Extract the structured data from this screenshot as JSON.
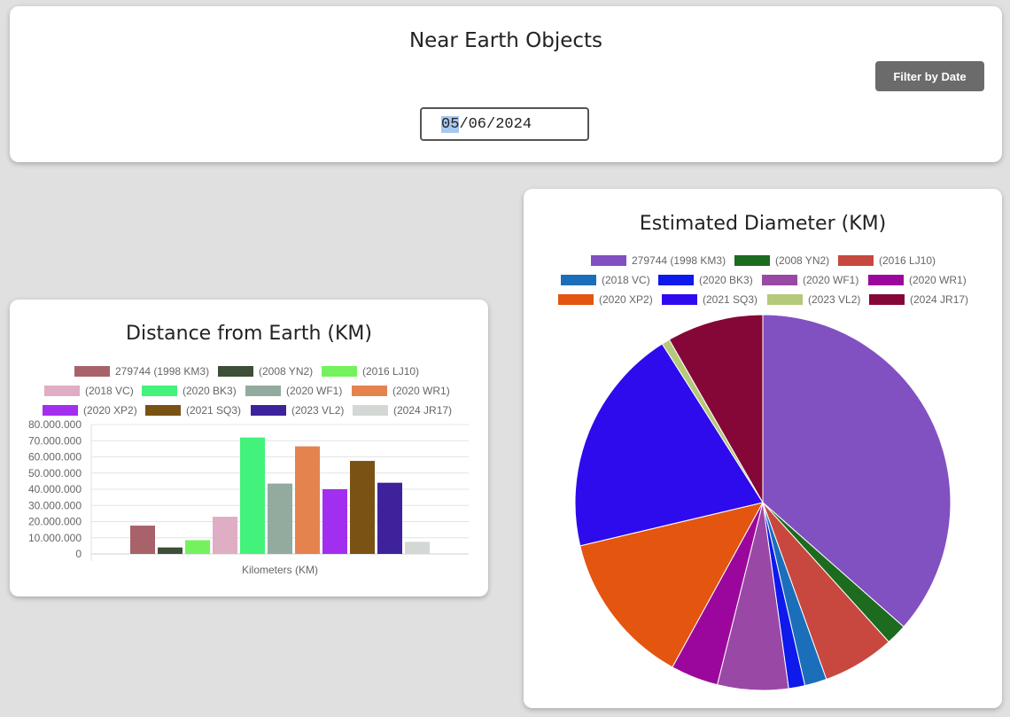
{
  "header": {
    "title": "Near Earth Objects",
    "filter_button": "Filter by Date",
    "date_value": {
      "month": "05",
      "day": "06",
      "year": "2024",
      "sep": "/"
    }
  },
  "chart_data": [
    {
      "type": "bar",
      "title": "Distance from Earth (KM)",
      "xlabel": "Kilometers (KM)",
      "ylabel": "",
      "ylim": [
        0,
        80000000
      ],
      "yticks": [
        "80.000.000",
        "70.000.000",
        "60.000.000",
        "50.000.000",
        "40.000.000",
        "30.000.000",
        "20.000.000",
        "10.000.000",
        "0"
      ],
      "legend_position": "top",
      "grid": true,
      "series": [
        {
          "name": "279744 (1998 KM3)",
          "value": 17500000,
          "color": "#a8636a"
        },
        {
          "name": "(2008 YN2)",
          "value": 4000000,
          "color": "#3d4f37"
        },
        {
          "name": "(2016 LJ10)",
          "value": 8500000,
          "color": "#74f25e"
        },
        {
          "name": "(2018 VC)",
          "value": 23000000,
          "color": "#dfadc4"
        },
        {
          "name": "(2020 BK3)",
          "value": 72000000,
          "color": "#43f27a"
        },
        {
          "name": "(2020 WF1)",
          "value": 43500000,
          "color": "#93ab9e"
        },
        {
          "name": "(2020 WR1)",
          "value": 66500000,
          "color": "#e5834e"
        },
        {
          "name": "(2020 XP2)",
          "value": 40000000,
          "color": "#a22ff0"
        },
        {
          "name": "(2021 SQ3)",
          "value": 57500000,
          "color": "#7a5213"
        },
        {
          "name": "(2023 VL2)",
          "value": 44000000,
          "color": "#3e229c"
        },
        {
          "name": "(2024 JR17)",
          "value": 7500000,
          "color": "#d3d8d5"
        }
      ]
    },
    {
      "type": "pie",
      "title": "Estimated Diameter (KM)",
      "legend_position": "top",
      "slices": [
        {
          "name": "279744 (1998 KM3)",
          "value": 36.5,
          "color": "#8150c1"
        },
        {
          "name": "(2008 YN2)",
          "value": 1.8,
          "color": "#1c6b1f"
        },
        {
          "name": "(2016 LJ10)",
          "value": 6.2,
          "color": "#c8473f"
        },
        {
          "name": "(2018 VC)",
          "value": 1.9,
          "color": "#1b6fba"
        },
        {
          "name": "(2020 BK3)",
          "value": 1.4,
          "color": "#0e19ec"
        },
        {
          "name": "(2020 WF1)",
          "value": 6.1,
          "color": "#9a48a6"
        },
        {
          "name": "(2020 WR1)",
          "value": 4.1,
          "color": "#9b079c"
        },
        {
          "name": "(2020 XP2)",
          "value": 13.3,
          "color": "#e4550f"
        },
        {
          "name": "(2021 SQ3)",
          "value": 19.7,
          "color": "#2e0bec"
        },
        {
          "name": "(2023 VL2)",
          "value": 0.7,
          "color": "#b5c97b"
        },
        {
          "name": "(2024 JR17)",
          "value": 8.3,
          "color": "#850737"
        }
      ]
    }
  ]
}
